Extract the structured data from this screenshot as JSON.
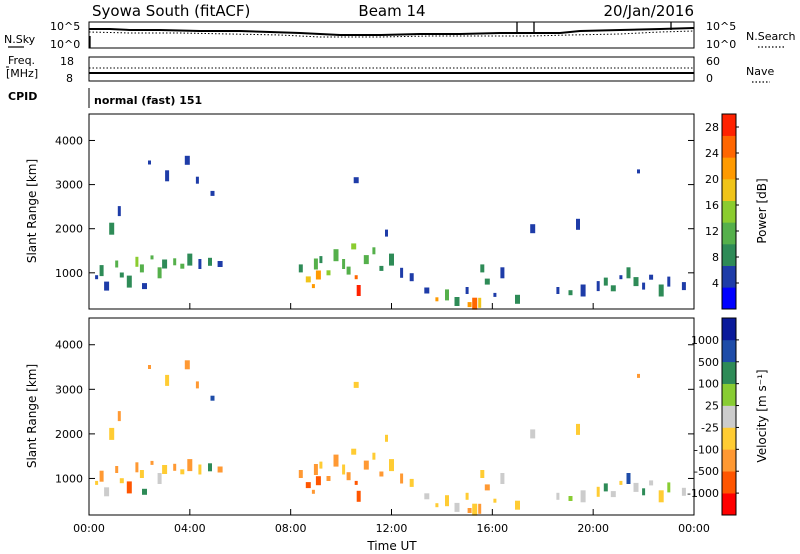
{
  "header": {
    "radar_label": "Syowa South (fitACF)",
    "beam_label": "Beam 14",
    "date_label": "20/Jan/2016"
  },
  "noise_panel": {
    "left_label": "N.Sky",
    "left_top_tick": "10^5",
    "left_bottom_tick": "10^0",
    "right_top_tick": "10^5",
    "right_bottom_tick": "10^0",
    "right_label": "N.Search",
    "legend_sky": "solid",
    "legend_search": "dotted"
  },
  "freq_panel": {
    "left_label_line1": "Freq.",
    "left_label_line2": "[MHz]",
    "left_top_tick": "18",
    "left_bottom_tick": "8",
    "right_top_tick": "60",
    "right_bottom_tick": "0",
    "right_label": "Nave"
  },
  "cpid_panel": {
    "label": "CPID",
    "mode_text": "normal (fast) 151"
  },
  "colors": {
    "power": [
      "#0000ff",
      "#1e3ca8",
      "#2e8b57",
      "#55b04b",
      "#8bcc2f",
      "#f0c419",
      "#ff9a00",
      "#ff6600",
      "#ff2200"
    ],
    "velocity": [
      "#ff0000",
      "#ff5500",
      "#ff9933",
      "#ffcc33",
      "#cccccc",
      "#88cc33",
      "#2e8b57",
      "#1e4ca8",
      "#0a1a9a"
    ]
  },
  "chart_data": [
    {
      "type": "heatmap",
      "name": "power",
      "ylabel": "Slant Range [km]",
      "xlabel": "",
      "yticks": [
        "1000",
        "2000",
        "3000",
        "4000"
      ],
      "ylim": [
        180,
        4600
      ],
      "xlim": [
        0,
        24
      ],
      "colorbar_label": "Power [dB]",
      "colorbar_ticks": [
        "4",
        "8",
        "12",
        "16",
        "20",
        "24",
        "28"
      ],
      "colorbar_range": [
        0,
        30
      ],
      "points": [
        [
          0.3,
          900,
          6
        ],
        [
          0.5,
          1050,
          8
        ],
        [
          0.7,
          700,
          5
        ],
        [
          1.1,
          1200,
          12
        ],
        [
          1.3,
          950,
          9
        ],
        [
          1.6,
          800,
          7
        ],
        [
          1.9,
          1250,
          14
        ],
        [
          2.1,
          1100,
          11
        ],
        [
          2.2,
          700,
          6
        ],
        [
          2.5,
          1350,
          13
        ],
        [
          2.8,
          1000,
          10
        ],
        [
          3.0,
          1200,
          9
        ],
        [
          3.4,
          1250,
          12
        ],
        [
          3.7,
          1150,
          10
        ],
        [
          4.0,
          1300,
          8
        ],
        [
          4.4,
          1200,
          6
        ],
        [
          4.8,
          1250,
          7
        ],
        [
          5.2,
          1200,
          5
        ],
        [
          2.4,
          3500,
          6
        ],
        [
          3.1,
          3200,
          5
        ],
        [
          3.9,
          3550,
          4
        ],
        [
          4.3,
          3100,
          6
        ],
        [
          4.9,
          2800,
          5
        ],
        [
          0.9,
          2000,
          7
        ],
        [
          1.2,
          2400,
          6
        ],
        [
          8.4,
          1100,
          9
        ],
        [
          8.7,
          850,
          18
        ],
        [
          8.9,
          700,
          22
        ],
        [
          9.0,
          1200,
          12
        ],
        [
          9.1,
          950,
          20
        ],
        [
          9.2,
          1300,
          8
        ],
        [
          9.5,
          1000,
          14
        ],
        [
          9.8,
          1400,
          10
        ],
        [
          10.1,
          1200,
          11
        ],
        [
          10.3,
          1050,
          13
        ],
        [
          10.5,
          1600,
          16
        ],
        [
          10.6,
          900,
          24
        ],
        [
          10.7,
          600,
          29
        ],
        [
          11.0,
          1300,
          12
        ],
        [
          11.3,
          1500,
          10
        ],
        [
          11.6,
          1100,
          9
        ],
        [
          12.0,
          1300,
          7
        ],
        [
          12.4,
          1000,
          6
        ],
        [
          12.8,
          900,
          5
        ],
        [
          13.4,
          600,
          6
        ],
        [
          13.8,
          400,
          20
        ],
        [
          14.2,
          500,
          10
        ],
        [
          14.6,
          350,
          8
        ],
        [
          15.0,
          600,
          6
        ],
        [
          15.1,
          280,
          22
        ],
        [
          15.3,
          300,
          24
        ],
        [
          15.5,
          320,
          18
        ],
        [
          15.6,
          1100,
          8
        ],
        [
          15.8,
          800,
          7
        ],
        [
          16.1,
          500,
          5
        ],
        [
          16.4,
          1000,
          6
        ],
        [
          17.0,
          400,
          7
        ],
        [
          18.6,
          600,
          6
        ],
        [
          19.1,
          550,
          8
        ],
        [
          19.6,
          600,
          5
        ],
        [
          20.2,
          700,
          6
        ],
        [
          20.5,
          800,
          8
        ],
        [
          20.8,
          650,
          7
        ],
        [
          21.1,
          900,
          6
        ],
        [
          21.4,
          1000,
          9
        ],
        [
          21.7,
          800,
          7
        ],
        [
          22.0,
          700,
          5
        ],
        [
          22.3,
          900,
          6
        ],
        [
          22.7,
          600,
          7
        ],
        [
          23.0,
          800,
          5
        ],
        [
          23.6,
          700,
          6
        ],
        [
          10.6,
          3100,
          6
        ],
        [
          21.8,
          3300,
          4
        ],
        [
          19.4,
          2100,
          5
        ],
        [
          17.6,
          2000,
          4
        ],
        [
          11.8,
          1900,
          5
        ]
      ]
    },
    {
      "type": "heatmap",
      "name": "velocity",
      "ylabel": "Slant Range [km]",
      "xlabel": "Time UT",
      "xticks": [
        "00:00",
        "04:00",
        "08:00",
        "12:00",
        "16:00",
        "20:00",
        "00:00"
      ],
      "yticks": [
        "1000",
        "2000",
        "3000",
        "4000"
      ],
      "ylim": [
        180,
        4600
      ],
      "xlim": [
        0,
        24
      ],
      "colorbar_label": "Velocity [m s⁻¹]",
      "colorbar_ticks": [
        "-1000",
        "-500",
        "-100",
        "-25",
        "25",
        "100",
        "500",
        "1000"
      ],
      "colorbar_range": [
        0,
        9
      ],
      "points": [
        [
          0.3,
          900,
          3
        ],
        [
          0.5,
          1050,
          2
        ],
        [
          0.7,
          700,
          4
        ],
        [
          1.1,
          1200,
          2
        ],
        [
          1.3,
          950,
          3
        ],
        [
          1.6,
          800,
          1
        ],
        [
          1.9,
          1250,
          2
        ],
        [
          2.1,
          1100,
          3
        ],
        [
          2.2,
          700,
          6
        ],
        [
          2.5,
          1350,
          2
        ],
        [
          2.8,
          1000,
          4
        ],
        [
          3.0,
          1200,
          3
        ],
        [
          3.4,
          1250,
          2
        ],
        [
          3.7,
          1150,
          3
        ],
        [
          4.0,
          1300,
          2
        ],
        [
          4.4,
          1200,
          3
        ],
        [
          4.8,
          1250,
          6
        ],
        [
          5.2,
          1200,
          2
        ],
        [
          2.4,
          3500,
          2
        ],
        [
          3.1,
          3200,
          3
        ],
        [
          3.9,
          3550,
          2
        ],
        [
          4.3,
          3100,
          2
        ],
        [
          4.9,
          2800,
          7
        ],
        [
          0.9,
          2000,
          3
        ],
        [
          1.2,
          2400,
          2
        ],
        [
          8.4,
          1100,
          2
        ],
        [
          8.7,
          850,
          1
        ],
        [
          8.9,
          700,
          2
        ],
        [
          9.0,
          1200,
          2
        ],
        [
          9.1,
          950,
          1
        ],
        [
          9.2,
          1300,
          3
        ],
        [
          9.5,
          1000,
          2
        ],
        [
          9.8,
          1400,
          2
        ],
        [
          10.1,
          1200,
          3
        ],
        [
          10.3,
          1050,
          2
        ],
        [
          10.5,
          1600,
          3
        ],
        [
          10.6,
          900,
          1
        ],
        [
          10.7,
          600,
          1
        ],
        [
          11.0,
          1300,
          2
        ],
        [
          11.3,
          1500,
          3
        ],
        [
          11.6,
          1100,
          2
        ],
        [
          12.0,
          1300,
          3
        ],
        [
          12.4,
          1000,
          2
        ],
        [
          12.8,
          900,
          3
        ],
        [
          13.4,
          600,
          4
        ],
        [
          13.8,
          400,
          3
        ],
        [
          14.2,
          500,
          3
        ],
        [
          14.6,
          350,
          4
        ],
        [
          15.0,
          600,
          3
        ],
        [
          15.1,
          280,
          2
        ],
        [
          15.3,
          300,
          3
        ],
        [
          15.5,
          320,
          2
        ],
        [
          15.6,
          1100,
          3
        ],
        [
          15.8,
          800,
          2
        ],
        [
          16.1,
          500,
          3
        ],
        [
          16.4,
          1000,
          4
        ],
        [
          17.0,
          400,
          3
        ],
        [
          18.6,
          600,
          4
        ],
        [
          19.1,
          550,
          5
        ],
        [
          19.6,
          600,
          4
        ],
        [
          20.2,
          700,
          3
        ],
        [
          20.5,
          800,
          6
        ],
        [
          20.8,
          650,
          4
        ],
        [
          21.1,
          900,
          3
        ],
        [
          21.4,
          1000,
          7
        ],
        [
          21.7,
          800,
          4
        ],
        [
          22.0,
          700,
          6
        ],
        [
          22.3,
          900,
          4
        ],
        [
          22.7,
          600,
          3
        ],
        [
          23.0,
          800,
          5
        ],
        [
          23.6,
          700,
          4
        ],
        [
          10.6,
          3100,
          3
        ],
        [
          21.8,
          3300,
          2
        ],
        [
          19.4,
          2100,
          3
        ],
        [
          17.6,
          2000,
          4
        ],
        [
          11.8,
          1900,
          3
        ]
      ]
    }
  ]
}
